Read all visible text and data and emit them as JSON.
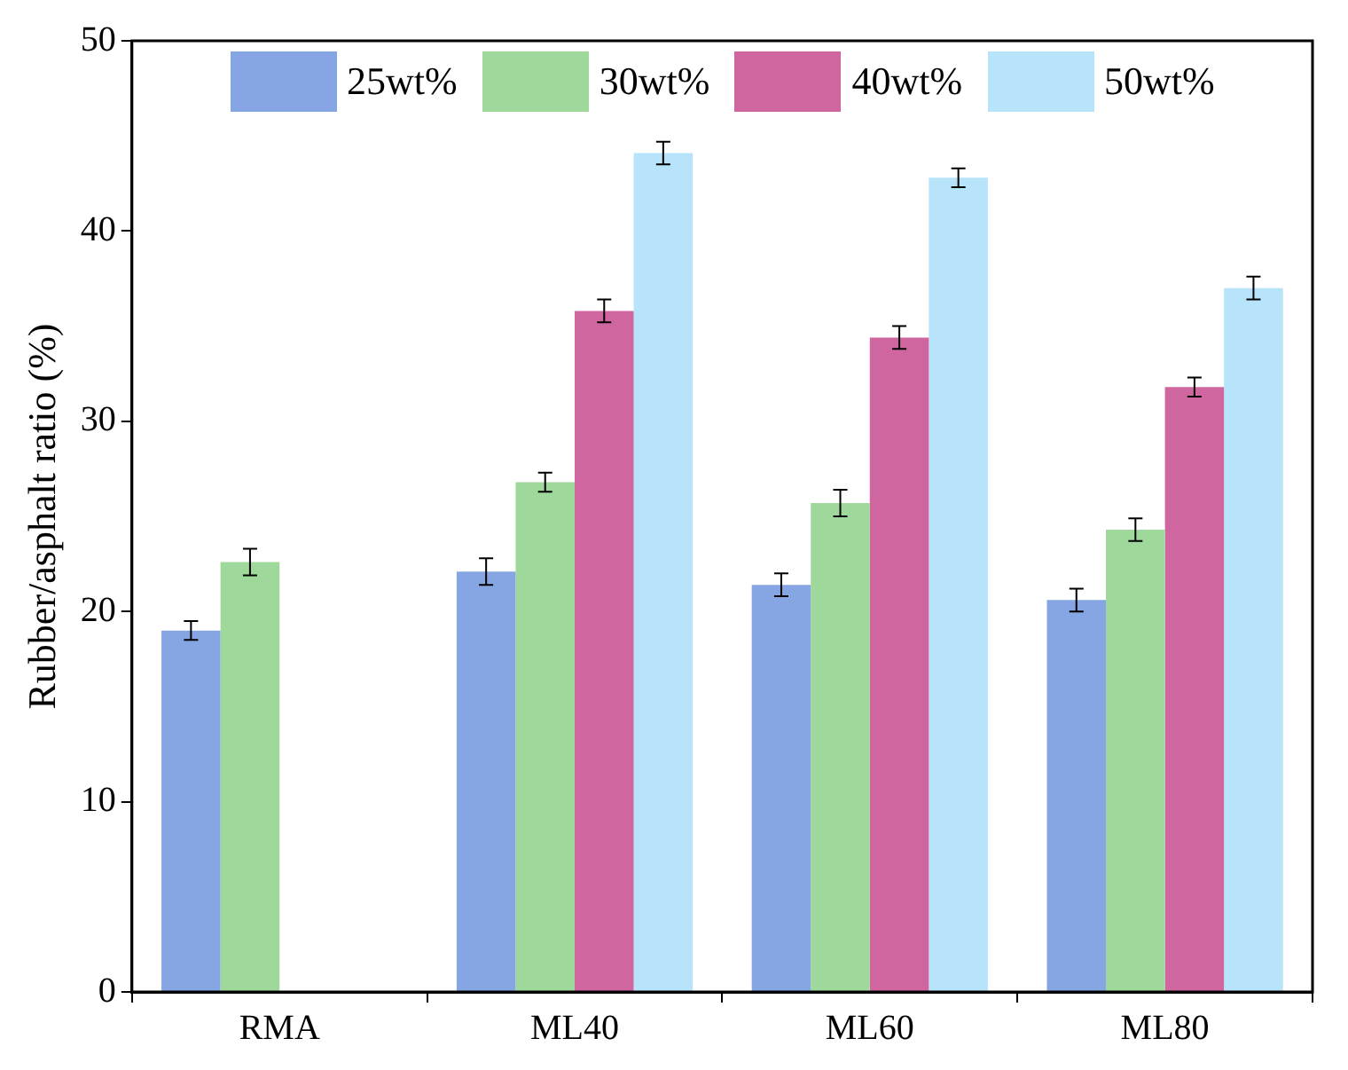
{
  "chart_data": {
    "type": "bar",
    "ylabel": "Rubber/asphalt ratio (%)",
    "categories": [
      "RMA",
      "ML40",
      "ML60",
      "ML80"
    ],
    "series": [
      {
        "name": "25wt%",
        "color": "#86a6e3",
        "values": [
          19.0,
          22.1,
          21.4,
          20.6
        ],
        "errors": [
          0.5,
          0.7,
          0.6,
          0.6
        ]
      },
      {
        "name": "30wt%",
        "color": "#9ed89a",
        "values": [
          22.6,
          26.8,
          25.7,
          24.3
        ],
        "errors": [
          0.7,
          0.5,
          0.7,
          0.6
        ]
      },
      {
        "name": "40wt%",
        "color": "#d066a0",
        "values": [
          null,
          35.8,
          34.4,
          31.8
        ],
        "errors": [
          null,
          0.6,
          0.6,
          0.5
        ]
      },
      {
        "name": "50wt%",
        "color": "#b8e4fb",
        "values": [
          null,
          44.1,
          42.8,
          37.0
        ],
        "errors": [
          null,
          0.6,
          0.5,
          0.6
        ]
      }
    ],
    "ylim": [
      0,
      50
    ],
    "yticks": [
      0,
      10,
      20,
      30,
      40,
      50
    ],
    "grid": false,
    "legend": "top"
  }
}
